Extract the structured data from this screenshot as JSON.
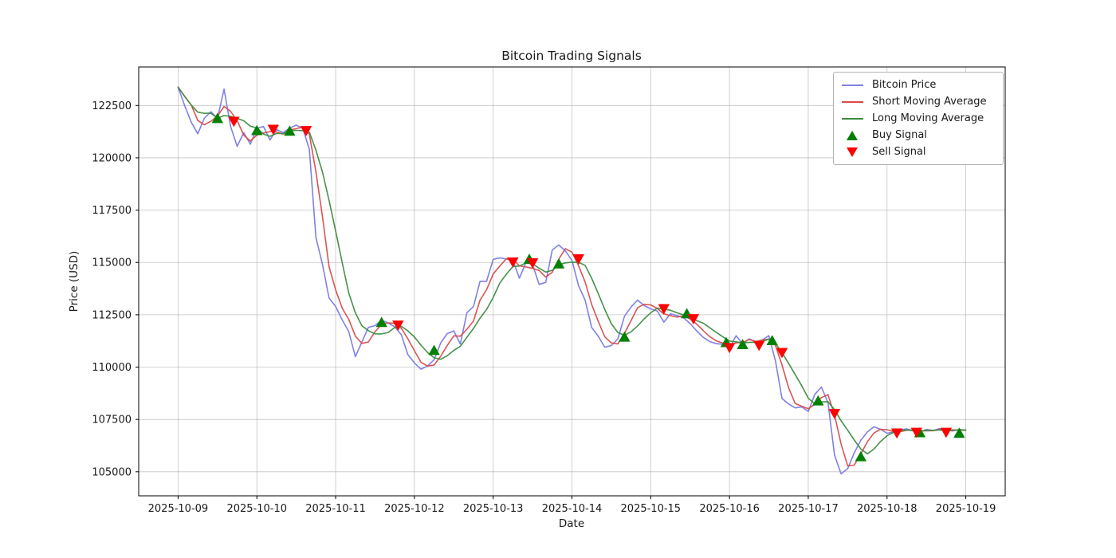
{
  "chart_data": {
    "type": "line",
    "title": "Bitcoin Trading Signals",
    "xlabel": "Date",
    "ylabel": "Price (USD)",
    "grid": true,
    "legend_position": "upper right",
    "background": "#ffffff",
    "grid_color": "#b0b0b0",
    "x_start": "2025-10-09 00:00",
    "x_interval_hours": 2,
    "xlim_hours_from_start": [
      -12,
      252
    ],
    "ylim": [
      103850,
      124340
    ],
    "x_tick_labels": [
      "2025-10-09",
      "2025-10-10",
      "2025-10-11",
      "2025-10-12",
      "2025-10-13",
      "2025-10-14",
      "2025-10-15",
      "2025-10-16",
      "2025-10-17",
      "2025-10-18",
      "2025-10-19"
    ],
    "y_ticks": [
      105000,
      107500,
      110000,
      112500,
      115000,
      117500,
      120000,
      122500
    ],
    "series": [
      {
        "name": "Bitcoin Price",
        "color": "#8080e6",
        "values": [
          123375,
          122500,
          121700,
          121150,
          121890,
          122200,
          121880,
          123280,
          121500,
          120550,
          121200,
          120650,
          121400,
          121500,
          120850,
          121350,
          121200,
          121420,
          121560,
          121400,
          120400,
          116200,
          114900,
          113300,
          112900,
          112250,
          111700,
          110500,
          111200,
          111900,
          111980,
          112240,
          112110,
          111920,
          111550,
          110600,
          110200,
          109900,
          110050,
          110350,
          111150,
          111600,
          111730,
          111100,
          112600,
          112900,
          114100,
          114100,
          115150,
          115220,
          115160,
          115100,
          114250,
          115000,
          114900,
          113950,
          114050,
          115600,
          115830,
          115550,
          115100,
          113900,
          113200,
          111900,
          111480,
          110950,
          111030,
          111350,
          112430,
          112870,
          113200,
          112940,
          112780,
          112680,
          112150,
          112550,
          112460,
          112360,
          112080,
          111730,
          111420,
          111220,
          111120,
          111090,
          110900,
          111500,
          111100,
          111350,
          111220,
          111300,
          111500,
          110300,
          108500,
          108240,
          108050,
          108100,
          107880,
          108700,
          109050,
          108300,
          105800,
          104900,
          105150,
          105900,
          106500,
          106900,
          107150,
          107030,
          106840,
          106900,
          107000,
          107050,
          106950,
          106900,
          107020,
          106970,
          107060,
          106990,
          106950,
          107020,
          106980
        ]
      },
      {
        "name": "Short Moving Average",
        "color": "#d84b4b",
        "window_points": 3,
        "derived": "simple moving average of Bitcoin Price, ~6 hour window"
      },
      {
        "name": "Long Moving Average",
        "color": "#3c8c3f",
        "window_points": 6,
        "derived": "simple moving average of Bitcoin Price, ~12 hour window"
      }
    ],
    "signals": {
      "buy": {
        "label": "Buy Signal",
        "color": "#008000",
        "marker": "triangle-up",
        "points": [
          {
            "time": "2025-10-09 12:00",
            "hour": 12,
            "price": 121860
          },
          {
            "time": "2025-10-10 00:00",
            "hour": 24,
            "price": 121280
          },
          {
            "time": "2025-10-10 10:00",
            "hour": 34,
            "price": 121255
          },
          {
            "time": "2025-10-11 14:00",
            "hour": 62,
            "price": 112115
          },
          {
            "time": "2025-10-12 06:00",
            "hour": 78,
            "price": 110780
          },
          {
            "time": "2025-10-13 11:00",
            "hour": 107,
            "price": 115135
          },
          {
            "time": "2025-10-13 20:00",
            "hour": 116,
            "price": 114910
          },
          {
            "time": "2025-10-14 16:00",
            "hour": 136,
            "price": 111415
          },
          {
            "time": "2025-10-15 11:00",
            "hour": 155,
            "price": 112530
          },
          {
            "time": "2025-10-15 23:00",
            "hour": 167,
            "price": 111150
          },
          {
            "time": "2025-10-16 04:00",
            "hour": 172,
            "price": 111055
          },
          {
            "time": "2025-10-16 13:00",
            "hour": 181,
            "price": 111245
          },
          {
            "time": "2025-10-17 03:00",
            "hour": 195,
            "price": 108365
          },
          {
            "time": "2025-10-17 16:00",
            "hour": 208,
            "price": 105700
          },
          {
            "time": "2025-10-18 10:00",
            "hour": 226,
            "price": 106845
          },
          {
            "time": "2025-10-18 22:00",
            "hour": 238,
            "price": 106820
          }
        ]
      },
      "sell": {
        "label": "Sell Signal",
        "color": "#ff0000",
        "marker": "triangle-down",
        "points": [
          {
            "time": "2025-10-09 17:00",
            "hour": 17,
            "price": 121760
          },
          {
            "time": "2025-10-10 05:00",
            "hour": 29,
            "price": 121380
          },
          {
            "time": "2025-10-10 15:00",
            "hour": 39,
            "price": 121320
          },
          {
            "time": "2025-10-11 19:00",
            "hour": 67,
            "price": 112025
          },
          {
            "time": "2025-10-13 06:00",
            "hour": 102,
            "price": 115040
          },
          {
            "time": "2025-10-13 12:00",
            "hour": 108,
            "price": 115000
          },
          {
            "time": "2025-10-14 02:00",
            "hour": 122,
            "price": 115190
          },
          {
            "time": "2025-10-15 04:00",
            "hour": 148,
            "price": 112810
          },
          {
            "time": "2025-10-15 13:00",
            "hour": 157,
            "price": 112330
          },
          {
            "time": "2025-10-16 00:00",
            "hour": 168,
            "price": 110950
          },
          {
            "time": "2025-10-16 09:00",
            "hour": 177,
            "price": 111055
          },
          {
            "time": "2025-10-16 16:00",
            "hour": 184,
            "price": 110715
          },
          {
            "time": "2025-10-17 08:00",
            "hour": 200,
            "price": 107800
          },
          {
            "time": "2025-10-18 03:00",
            "hour": 219,
            "price": 106870
          },
          {
            "time": "2025-10-18 09:00",
            "hour": 225,
            "price": 106905
          },
          {
            "time": "2025-10-18 18:00",
            "hour": 234,
            "price": 106905
          }
        ]
      }
    }
  },
  "legend": {
    "items": [
      {
        "label": "Bitcoin Price"
      },
      {
        "label": "Short Moving Average"
      },
      {
        "label": "Long Moving Average"
      },
      {
        "label": "Buy Signal"
      },
      {
        "label": "Sell Signal"
      }
    ]
  }
}
